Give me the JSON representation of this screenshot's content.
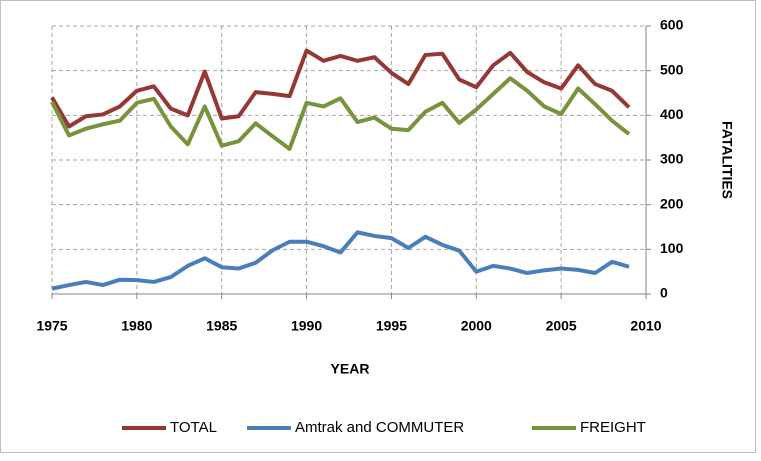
{
  "chart_data": {
    "type": "line",
    "x_label": "YEAR",
    "y_label": "FATALITIES",
    "x": [
      1975,
      1976,
      1977,
      1978,
      1979,
      1980,
      1981,
      1982,
      1983,
      1984,
      1985,
      1986,
      1987,
      1988,
      1989,
      1990,
      1991,
      1992,
      1993,
      1994,
      1995,
      1996,
      1997,
      1998,
      1999,
      2000,
      2001,
      2002,
      2003,
      2004,
      2005,
      2006,
      2007,
      2008,
      2009
    ],
    "series": [
      {
        "name": "TOTAL",
        "color": "#953735",
        "values": [
          440,
          375,
          398,
          402,
          420,
          455,
          465,
          415,
          400,
          498,
          393,
          398,
          452,
          448,
          443,
          545,
          522,
          533,
          522,
          530,
          495,
          470,
          535,
          538,
          480,
          463,
          512,
          540,
          497,
          474,
          460,
          512,
          470,
          455,
          418
        ]
      },
      {
        "name": "Amtrak and COMMUTER",
        "color": "#4a7ebb",
        "values": [
          12,
          20,
          27,
          20,
          32,
          31,
          27,
          38,
          63,
          80,
          60,
          57,
          70,
          98,
          117,
          117,
          107,
          93,
          138,
          130,
          125,
          103,
          128,
          110,
          97,
          50,
          63,
          57,
          47,
          53,
          57,
          54,
          47,
          72,
          61
        ]
      },
      {
        "name": "FREIGHT",
        "color": "#77933c",
        "values": [
          430,
          355,
          370,
          380,
          388,
          428,
          437,
          375,
          335,
          420,
          332,
          342,
          382,
          353,
          325,
          428,
          420,
          438,
          385,
          395,
          370,
          367,
          408,
          428,
          383,
          413,
          448,
          483,
          455,
          420,
          403,
          460,
          425,
          388,
          358
        ]
      }
    ],
    "xlim": [
      1975,
      2010
    ],
    "xticks": [
      1975,
      1980,
      1985,
      1990,
      1995,
      2000,
      2005,
      2010
    ],
    "ylim": [
      0,
      600
    ],
    "yticks": [
      0,
      100,
      200,
      300,
      400,
      500,
      600
    ],
    "grid": true,
    "y_axis_side": "right",
    "legend": "bottom"
  }
}
